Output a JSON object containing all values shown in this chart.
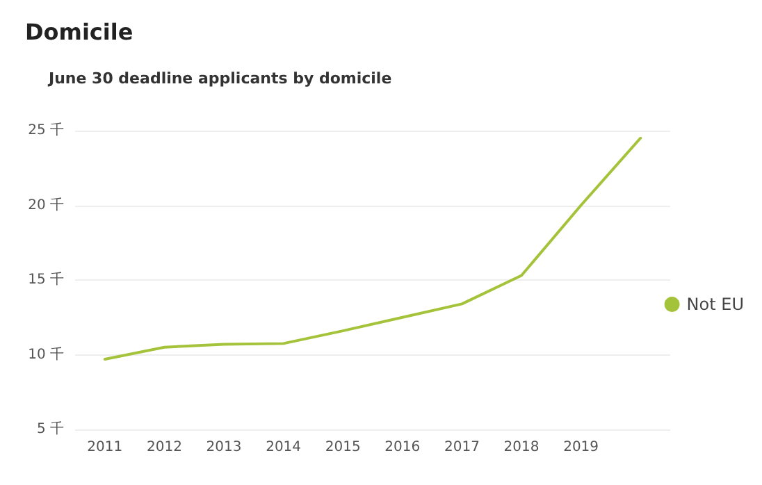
{
  "chart_data": {
    "type": "line",
    "title": "Domicile",
    "subtitle": "June 30 deadline applicants by domicile",
    "categories": [
      "2011",
      "2012",
      "2013",
      "2014",
      "2015",
      "2016",
      "2017",
      "2018",
      "2019",
      null
    ],
    "series": [
      {
        "name": "Not EU",
        "color": "#a5c33a",
        "values": [
          9.7,
          10.5,
          10.7,
          10.75,
          11.6,
          12.5,
          13.4,
          15.3,
          20.0,
          24.5
        ]
      }
    ],
    "ylim": [
      5,
      25
    ],
    "yticks": [
      {
        "value": 5,
        "label": "5 千"
      },
      {
        "value": 10,
        "label": "10 千"
      },
      {
        "value": 15,
        "label": "15 千"
      },
      {
        "value": 20,
        "label": "20 千"
      },
      {
        "value": 25,
        "label": "25 千"
      }
    ],
    "grid": "y",
    "legend": "right",
    "marker": "none",
    "line_style": "solid"
  }
}
